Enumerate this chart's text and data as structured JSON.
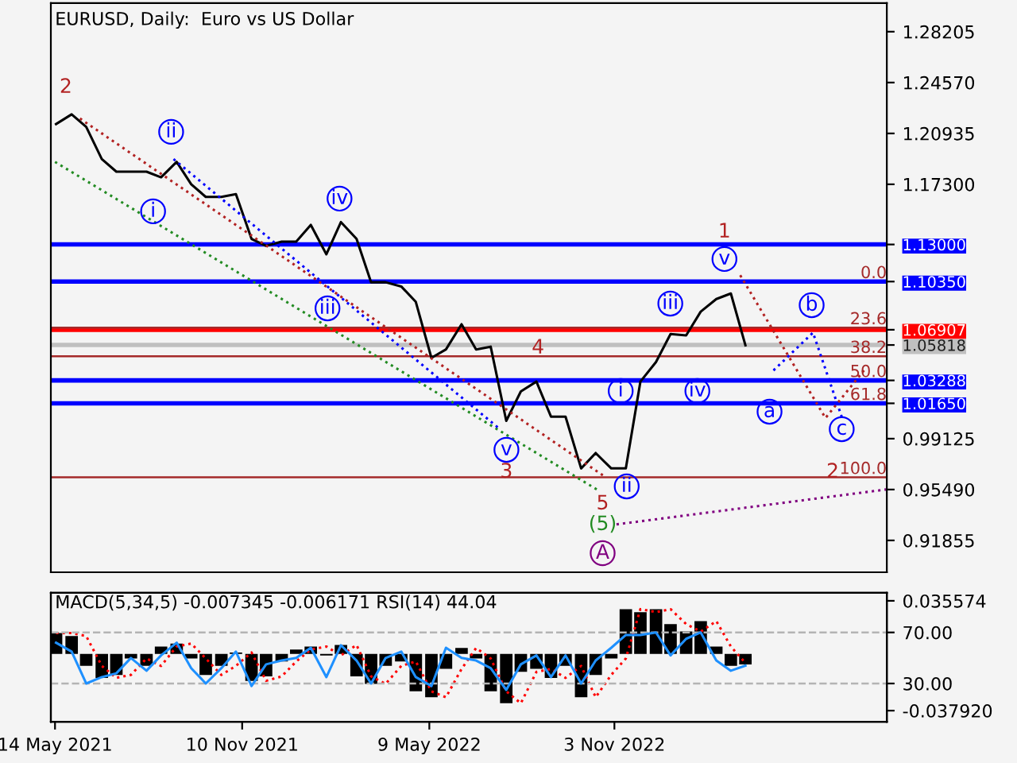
{
  "chart_data": [
    {
      "type": "line",
      "title": "EURUSD, Daily:  Euro vs US Dollar",
      "xlim": [
        "2021-05-10",
        "2023-07-23"
      ],
      "ylim": [
        0.8958,
        1.3025
      ],
      "yticks": [
        {
          "value": 0.91855,
          "label": "0.91855"
        },
        {
          "value": 0.9549,
          "label": "0.95490"
        },
        {
          "value": 0.99125,
          "label": "0.99125"
        },
        {
          "value": 1.0165,
          "label": "1.01650"
        },
        {
          "value": 1.03288,
          "label": "1.03288"
        },
        {
          "value": 1.05818,
          "label": "1.05818"
        },
        {
          "value": 1.06907,
          "label": "1.06907"
        },
        {
          "value": 1.1035,
          "label": "1.10350"
        },
        {
          "value": 1.13,
          "label": "1.13000"
        },
        {
          "value": 1.173,
          "label": "1.17300"
        },
        {
          "value": 1.20935,
          "label": "1.20935"
        },
        {
          "value": 1.2457,
          "label": "1.24570"
        },
        {
          "value": 1.28205,
          "label": "1.28205"
        }
      ],
      "tick_labels": "y",
      "grid": false,
      "legend": false,
      "x": [
        "2021-05-15",
        "2021-05-30",
        "2021-06-13",
        "2021-06-28",
        "2021-07-12",
        "2021-07-26",
        "2021-08-10",
        "2021-08-24",
        "2021-09-08",
        "2021-09-22",
        "2021-10-06",
        "2021-10-21",
        "2021-11-04",
        "2021-11-19",
        "2021-12-03",
        "2021-12-18",
        "2022-01-01",
        "2022-01-15",
        "2022-01-30",
        "2022-02-13",
        "2022-02-28",
        "2022-03-14",
        "2022-03-28",
        "2022-04-12",
        "2022-04-26",
        "2022-05-11",
        "2022-05-25",
        "2022-06-09",
        "2022-06-23",
        "2022-07-07",
        "2022-07-22",
        "2022-08-05",
        "2022-08-20",
        "2022-09-03",
        "2022-09-17",
        "2022-10-02",
        "2022-10-16",
        "2022-10-31",
        "2022-11-14",
        "2022-11-28",
        "2022-12-13",
        "2022-12-27",
        "2023-01-11",
        "2023-01-25",
        "2023-02-09",
        "2023-02-23",
        "2023-03-09"
      ],
      "series": [
        {
          "color": "#000000",
          "line_style": "solid",
          "values": [
            1.216,
            1.223,
            1.214,
            1.191,
            1.182,
            1.182,
            1.182,
            1.178,
            1.189,
            1.173,
            1.164,
            1.164,
            1.166,
            1.134,
            1.129,
            1.132,
            1.132,
            1.144,
            1.123,
            1.146,
            1.134,
            1.103,
            1.103,
            1.1,
            1.089,
            1.049,
            1.055,
            1.073,
            1.055,
            1.057,
            1.004,
            1.025,
            1.032,
            1.007,
            1.007,
            0.97,
            0.981,
            0.97,
            0.97,
            1.032,
            1.046,
            1.066,
            1.065,
            1.082,
            1.091,
            1.095,
            1.058
          ]
        },
        {
          "color": "#228b22",
          "line_style": "dotted",
          "x": [
            "2021-05-14",
            "2022-10-17"
          ],
          "values": [
            1.189,
            0.955
          ]
        },
        {
          "color": "#b22222",
          "line_style": "dotted",
          "x": [
            "2021-06-07",
            "2022-10-25"
          ],
          "values": [
            1.22,
            0.964
          ]
        },
        {
          "color": "#0000ff",
          "line_style": "dotted",
          "x": [
            "2021-09-05",
            "2022-07-16"
          ],
          "values": [
            1.191,
            0.998
          ]
        },
        {
          "color": "#800080",
          "line_style": "dotted",
          "x": [
            "2022-11-05",
            "2023-07-23"
          ],
          "values": [
            0.93,
            0.955
          ]
        },
        {
          "color": "#0000ff",
          "line_style": "dotted",
          "x": [
            "2023-04-05",
            "2023-05-13",
            "2023-06-10"
          ],
          "values": [
            1.04,
            1.067,
            1.006
          ]
        },
        {
          "color": "#b22222",
          "line_style": "dotted",
          "x": [
            "2023-03-04",
            "2023-05-25",
            "2023-07-01"
          ],
          "values": [
            1.108,
            1.006,
            1.04
          ]
        }
      ],
      "ref_lines": [
        {
          "axis": "y",
          "value": 1.13,
          "color": "#0000ff"
        },
        {
          "axis": "y",
          "value": 1.1035,
          "color": "#0000ff"
        },
        {
          "axis": "y",
          "value": 1.06907,
          "color": "#ff0000"
        },
        {
          "axis": "y",
          "value": 1.05818,
          "color": "#c0c0c0"
        },
        {
          "axis": "y",
          "value": 1.03288,
          "color": "#0000ff"
        },
        {
          "axis": "y",
          "value": 1.0165,
          "color": "#0000ff"
        },
        {
          "axis": "y",
          "value": 1.0705,
          "color": "#a52a2a"
        },
        {
          "axis": "y",
          "value": 1.0501,
          "color": "#a52a2a"
        },
        {
          "axis": "y",
          "value": 0.9636,
          "color": "#a52a2a"
        }
      ],
      "annotations": [
        "2",
        "ii",
        "i",
        "iv",
        "iii",
        "v",
        "3",
        "4",
        "5",
        "(5)",
        "A",
        "i",
        "ii",
        "iii",
        "iv",
        "v",
        "1",
        "a",
        "b",
        "c",
        "2",
        {
          "text": "0.0",
          "x": "2023-07-23",
          "y": 1.1035
        },
        {
          "text": "23.6",
          "x": "2023-07-23",
          "y": 1.0705
        },
        {
          "text": "38.2",
          "x": "2023-07-23",
          "y": 1.0501
        },
        {
          "text": "50.0",
          "x": "2023-07-23",
          "y": 1.03288
        },
        {
          "text": "61.8",
          "x": "2023-07-23",
          "y": 1.0165
        },
        {
          "text": "100.0",
          "x": "2023-07-23",
          "y": 0.9636
        }
      ]
    },
    {
      "type": "bar",
      "title": "MACD(5,34,5) -0.007345 -0.006171 RSI(14) 44.04",
      "xlim": [
        "2021-05-10",
        "2023-07-23"
      ],
      "ylim": [
        -0.0454,
        0.0409
      ],
      "yticks": [
        {
          "value": -0.03792,
          "label": "-0.037920"
        },
        {
          "value": 0.035574,
          "label": "0.035574"
        }
      ],
      "y2lim": [
        0,
        101
      ],
      "y2ticks": [
        {
          "value": 30,
          "label": "30.00"
        },
        {
          "value": 70,
          "label": "70.00"
        }
      ],
      "xticks": [
        {
          "value": "2021-05-14",
          "label": "14 May 2021"
        },
        {
          "value": "2021-11-10",
          "label": "10 Nov 2021"
        },
        {
          "value": "2022-05-09",
          "label": "9 May 2022"
        },
        {
          "value": "2022-11-03",
          "label": "3 Nov 2022"
        }
      ],
      "grid": false,
      "legend": false,
      "x": [
        "2021-05-15",
        "2021-05-30",
        "2021-06-13",
        "2021-06-28",
        "2021-07-12",
        "2021-07-26",
        "2021-08-10",
        "2021-08-24",
        "2021-09-08",
        "2021-09-22",
        "2021-10-06",
        "2021-10-21",
        "2021-11-04",
        "2021-11-19",
        "2021-12-03",
        "2021-12-18",
        "2022-01-01",
        "2022-01-15",
        "2022-01-30",
        "2022-02-13",
        "2022-02-28",
        "2022-03-14",
        "2022-03-28",
        "2022-04-12",
        "2022-04-26",
        "2022-05-11",
        "2022-05-25",
        "2022-06-09",
        "2022-06-23",
        "2022-07-07",
        "2022-07-22",
        "2022-08-05",
        "2022-08-20",
        "2022-09-03",
        "2022-09-17",
        "2022-10-02",
        "2022-10-16",
        "2022-10-31",
        "2022-11-14",
        "2022-11-28",
        "2022-12-13",
        "2022-12-27",
        "2023-01-11",
        "2023-01-25",
        "2023-02-09",
        "2023-02-23",
        "2023-03-09"
      ],
      "series": [
        {
          "type": "bar",
          "color": "#000000",
          "values": [
            0.014,
            0.012,
            -0.008,
            -0.016,
            -0.014,
            -0.003,
            -0.008,
            0.005,
            0.007,
            -0.003,
            -0.014,
            -0.008,
            0.001,
            -0.018,
            -0.015,
            -0.005,
            0.003,
            0.005,
            -0.001,
            0.006,
            -0.015,
            -0.02,
            -0.008,
            -0.005,
            -0.025,
            -0.029,
            -0.01,
            0.004,
            -0.003,
            -0.025,
            -0.033,
            -0.012,
            -0.01,
            -0.016,
            -0.008,
            -0.029,
            -0.014,
            -0.003,
            0.03,
            0.028,
            0.03,
            0.02,
            0.015,
            0.022,
            0.005,
            -0.008,
            -0.007
          ]
        },
        {
          "type": "line",
          "color": "#ff0000",
          "line_style": "dotted",
          "values": [
            0.014,
            0.014,
            0.012,
            -0.008,
            -0.016,
            -0.014,
            -0.003,
            -0.008,
            0.005,
            0.007,
            -0.003,
            -0.014,
            -0.008,
            0.001,
            -0.018,
            -0.015,
            -0.005,
            0.003,
            0.005,
            -0.001,
            0.006,
            -0.015,
            -0.02,
            -0.008,
            -0.005,
            -0.025,
            -0.029,
            -0.01,
            0.004,
            -0.003,
            -0.025,
            -0.033,
            -0.012,
            -0.01,
            -0.016,
            -0.008,
            -0.029,
            -0.014,
            -0.003,
            0.03,
            0.028,
            0.03,
            0.02,
            0.015,
            0.022,
            0.005,
            -0.006
          ]
        },
        {
          "type": "line",
          "axis": "y2",
          "color": "#1e90ff",
          "line_style": "solid",
          "values": [
            62,
            55,
            30,
            35,
            38,
            50,
            40,
            52,
            62,
            42,
            30,
            42,
            55,
            28,
            45,
            48,
            50,
            58,
            35,
            60,
            48,
            30,
            50,
            55,
            35,
            28,
            58,
            50,
            48,
            42,
            25,
            45,
            52,
            35,
            52,
            30,
            48,
            58,
            68,
            68,
            70,
            52,
            65,
            70,
            48,
            40,
            44
          ]
        }
      ],
      "ref_lines": [
        {
          "axis": "y2",
          "value": 70,
          "color": "#b4b4b4",
          "line_style": "dashed"
        },
        {
          "axis": "y2",
          "value": 30,
          "color": "#b4b4b4",
          "line_style": "dashed"
        }
      ]
    }
  ]
}
